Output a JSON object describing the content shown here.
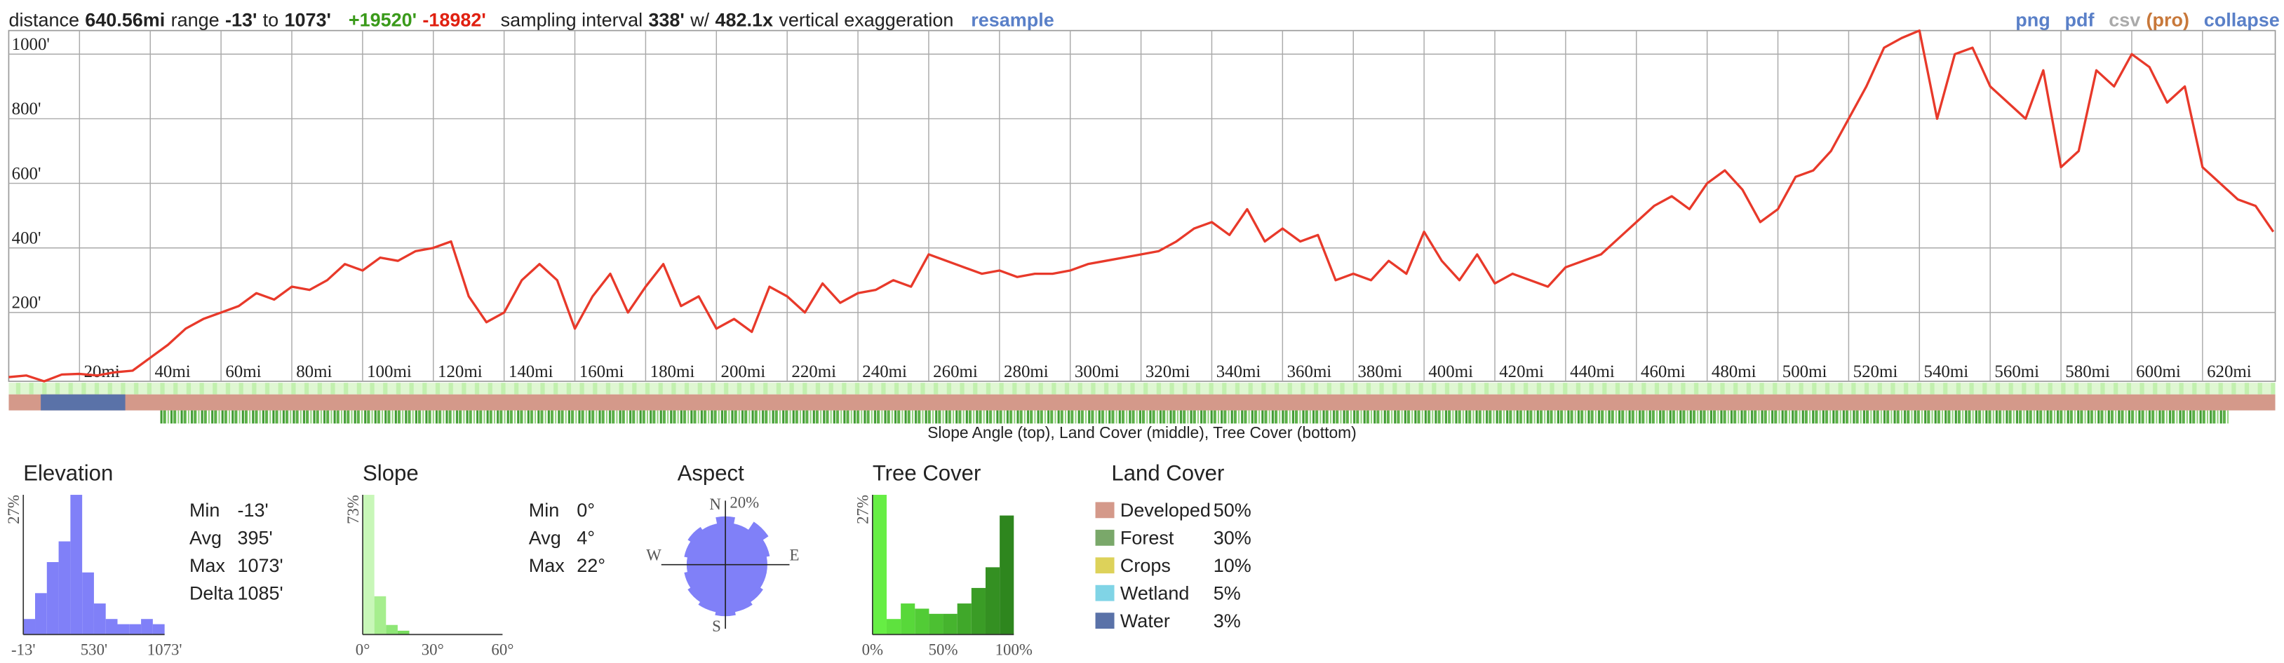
{
  "header": {
    "distance_label": "distance",
    "distance": "640.56mi",
    "range_label": "range",
    "range_min": "-13'",
    "range_to": "to",
    "range_max": "1073'",
    "gain": "+19520'",
    "loss": "-18982'",
    "interval_label": "sampling interval",
    "interval": "338'",
    "exaggeration_label": "w/",
    "exaggeration": "482.1x",
    "exaggeration_suffix": "vertical exaggeration",
    "resample": "resample"
  },
  "toolbar": {
    "png": "png",
    "pdf": "pdf",
    "csv": "csv",
    "pro": "(pro)",
    "collapse": "collapse"
  },
  "bands": {
    "caption": "Slope Angle (top), Land Cover (middle), Tree Cover (bottom)"
  },
  "chart_data": [
    {
      "type": "line",
      "color": "#e8392a",
      "grid": true,
      "x": [
        0,
        5,
        10,
        15,
        20,
        25,
        30,
        35,
        40,
        45,
        50,
        55,
        60,
        65,
        70,
        75,
        80,
        85,
        90,
        95,
        100,
        105,
        110,
        115,
        120,
        125,
        130,
        135,
        140,
        145,
        150,
        155,
        160,
        165,
        170,
        175,
        180,
        185,
        190,
        195,
        200,
        205,
        210,
        215,
        220,
        225,
        230,
        235,
        240,
        245,
        250,
        255,
        260,
        265,
        270,
        275,
        280,
        285,
        290,
        295,
        300,
        305,
        310,
        315,
        320,
        325,
        330,
        335,
        340,
        345,
        350,
        355,
        360,
        365,
        370,
        375,
        380,
        385,
        390,
        395,
        400,
        405,
        410,
        415,
        420,
        425,
        430,
        435,
        440,
        445,
        450,
        455,
        460,
        465,
        470,
        475,
        480,
        485,
        490,
        495,
        500,
        505,
        510,
        515,
        520,
        525,
        530,
        535,
        540,
        545,
        550,
        555,
        560,
        565,
        570,
        575,
        580,
        585,
        590,
        595,
        600,
        605,
        610,
        615,
        620,
        625,
        630,
        635,
        640
      ],
      "values": [
        0,
        5,
        -13,
        8,
        10,
        5,
        15,
        20,
        60,
        100,
        150,
        180,
        200,
        220,
        260,
        240,
        280,
        270,
        300,
        350,
        330,
        370,
        360,
        390,
        400,
        420,
        250,
        170,
        200,
        300,
        350,
        300,
        150,
        250,
        320,
        200,
        280,
        350,
        220,
        250,
        150,
        180,
        140,
        280,
        250,
        200,
        290,
        230,
        260,
        270,
        300,
        280,
        380,
        360,
        340,
        320,
        330,
        310,
        320,
        320,
        330,
        350,
        360,
        370,
        380,
        390,
        420,
        460,
        480,
        440,
        520,
        420,
        460,
        420,
        440,
        300,
        320,
        300,
        360,
        320,
        450,
        360,
        300,
        380,
        290,
        320,
        300,
        280,
        340,
        360,
        380,
        430,
        480,
        530,
        560,
        520,
        600,
        640,
        580,
        480,
        520,
        620,
        640,
        700,
        800,
        900,
        1020,
        1050,
        1073,
        800,
        1000,
        1020,
        900,
        850,
        800,
        950,
        650,
        700,
        950,
        900,
        1000,
        960,
        850,
        900,
        650,
        600,
        550,
        530,
        450
      ],
      "xlim": [
        0,
        640.56
      ],
      "ylim": [
        -13,
        1073
      ],
      "xticks": [
        {
          "value": 20,
          "label": "20mi"
        },
        {
          "value": 40,
          "label": "40mi"
        },
        {
          "value": 60,
          "label": "60mi"
        },
        {
          "value": 80,
          "label": "80mi"
        },
        {
          "value": 100,
          "label": "100mi"
        },
        {
          "value": 120,
          "label": "120mi"
        },
        {
          "value": 140,
          "label": "140mi"
        },
        {
          "value": 160,
          "label": "160mi"
        },
        {
          "value": 180,
          "label": "180mi"
        },
        {
          "value": 200,
          "label": "200mi"
        },
        {
          "value": 220,
          "label": "220mi"
        },
        {
          "value": 240,
          "label": "240mi"
        },
        {
          "value": 260,
          "label": "260mi"
        },
        {
          "value": 280,
          "label": "280mi"
        },
        {
          "value": 300,
          "label": "300mi"
        },
        {
          "value": 320,
          "label": "320mi"
        },
        {
          "value": 340,
          "label": "340mi"
        },
        {
          "value": 360,
          "label": "360mi"
        },
        {
          "value": 380,
          "label": "380mi"
        },
        {
          "value": 400,
          "label": "400mi"
        },
        {
          "value": 420,
          "label": "420mi"
        },
        {
          "value": 440,
          "label": "440mi"
        },
        {
          "value": 460,
          "label": "460mi"
        },
        {
          "value": 480,
          "label": "480mi"
        },
        {
          "value": 500,
          "label": "500mi"
        },
        {
          "value": 520,
          "label": "520mi"
        },
        {
          "value": 540,
          "label": "540mi"
        },
        {
          "value": 560,
          "label": "560mi"
        },
        {
          "value": 580,
          "label": "580mi"
        },
        {
          "value": 600,
          "label": "600mi"
        },
        {
          "value": 620,
          "label": "620mi"
        }
      ],
      "yticks": [
        {
          "value": 200,
          "label": "200'"
        },
        {
          "value": 400,
          "label": "400'"
        },
        {
          "value": 600,
          "label": "600'"
        },
        {
          "value": 800,
          "label": "800'"
        },
        {
          "value": 1000,
          "label": "1000'"
        }
      ]
    },
    {
      "type": "histogram",
      "title": "Elevation",
      "color": "#8080f8",
      "bins": [
        -13,
        77.5,
        168,
        258.5,
        349,
        439.5,
        530,
        620.5,
        711,
        801.5,
        892,
        982.5,
        1073
      ],
      "values": [
        3,
        8,
        14,
        18,
        27,
        12,
        6,
        3,
        2,
        2,
        3,
        2
      ],
      "xlim": [
        -13,
        1073
      ],
      "ylim": [
        0,
        27
      ],
      "xticks": [
        {
          "value": -13,
          "label": "-13'"
        },
        {
          "value": 530,
          "label": "530'"
        },
        {
          "value": 1073,
          "label": "1073'"
        }
      ],
      "yticks": [
        {
          "value": 27,
          "label": "27%"
        }
      ],
      "stats": [
        {
          "label": "Min",
          "value": "-13'"
        },
        {
          "label": "Avg",
          "value": "395'"
        },
        {
          "label": "Max",
          "value": "1073'"
        },
        {
          "label": "Delta",
          "value": "1085'"
        }
      ]
    },
    {
      "type": "histogram",
      "title": "Slope",
      "colors": [
        "#c8f7b8",
        "#a6ee8e",
        "#8ee676",
        "#78dc5e",
        "#66d24c",
        "#56c83c",
        "#48be30",
        "#3cb426",
        "#32aa1e",
        "#2aa018",
        "#229612",
        "#1c8c0e"
      ],
      "bins": [
        0,
        5,
        10,
        15,
        20,
        25,
        30,
        35,
        40,
        45,
        50,
        55,
        60
      ],
      "values": [
        73,
        20,
        5,
        2,
        0,
        0,
        0,
        0,
        0,
        0,
        0,
        0
      ],
      "xlim": [
        0,
        60
      ],
      "ylim": [
        0,
        73
      ],
      "xticks": [
        {
          "value": 0,
          "label": "0°"
        },
        {
          "value": 30,
          "label": "30°"
        },
        {
          "value": 60,
          "label": "60°"
        }
      ],
      "yticks": [
        {
          "value": 73,
          "label": "73%"
        }
      ],
      "stats": [
        {
          "label": "Min",
          "value": "0°"
        },
        {
          "label": "Avg",
          "value": "4°"
        },
        {
          "label": "Max",
          "value": "22°"
        }
      ]
    },
    {
      "type": "rose",
      "title": "Aspect",
      "color": "#8080f8",
      "values": [
        15,
        13,
        16,
        14,
        13,
        13,
        14,
        15,
        16,
        15,
        14,
        13,
        12,
        13,
        14,
        13
      ],
      "directions": [
        "N",
        "E",
        "S",
        "W"
      ],
      "rlim": [
        0,
        20
      ],
      "rticks": [
        {
          "value": 20,
          "label": "20%"
        }
      ]
    },
    {
      "type": "histogram",
      "title": "Tree Cover",
      "colors": [
        "#66ee44",
        "#5ee23e",
        "#58d83a",
        "#52cc36",
        "#4cc032",
        "#46b42e",
        "#40a82a",
        "#3a9c26",
        "#349022",
        "#2e861e"
      ],
      "bins": [
        0,
        10,
        20,
        30,
        40,
        50,
        60,
        70,
        80,
        90,
        100
      ],
      "values": [
        27,
        3,
        6,
        5,
        4,
        4,
        6,
        9,
        13,
        23
      ],
      "xlim": [
        0,
        100
      ],
      "ylim": [
        0,
        27
      ],
      "xticks": [
        {
          "value": 0,
          "label": "0%"
        },
        {
          "value": 50,
          "label": "50%"
        },
        {
          "value": 100,
          "label": "100%"
        }
      ],
      "yticks": [
        {
          "value": 27,
          "label": "27%"
        }
      ]
    },
    {
      "type": "legend_list",
      "title": "Land Cover",
      "categories": [
        "Developed",
        "Forest",
        "Crops",
        "Wetland",
        "Water"
      ],
      "values": [
        50,
        30,
        10,
        5,
        3
      ],
      "value_labels": [
        "50%",
        "30%",
        "10%",
        "5%",
        "3%"
      ],
      "colors": [
        "#d4998a",
        "#7aa86a",
        "#ddd25a",
        "#80d4e6",
        "#5a72a8"
      ]
    }
  ]
}
